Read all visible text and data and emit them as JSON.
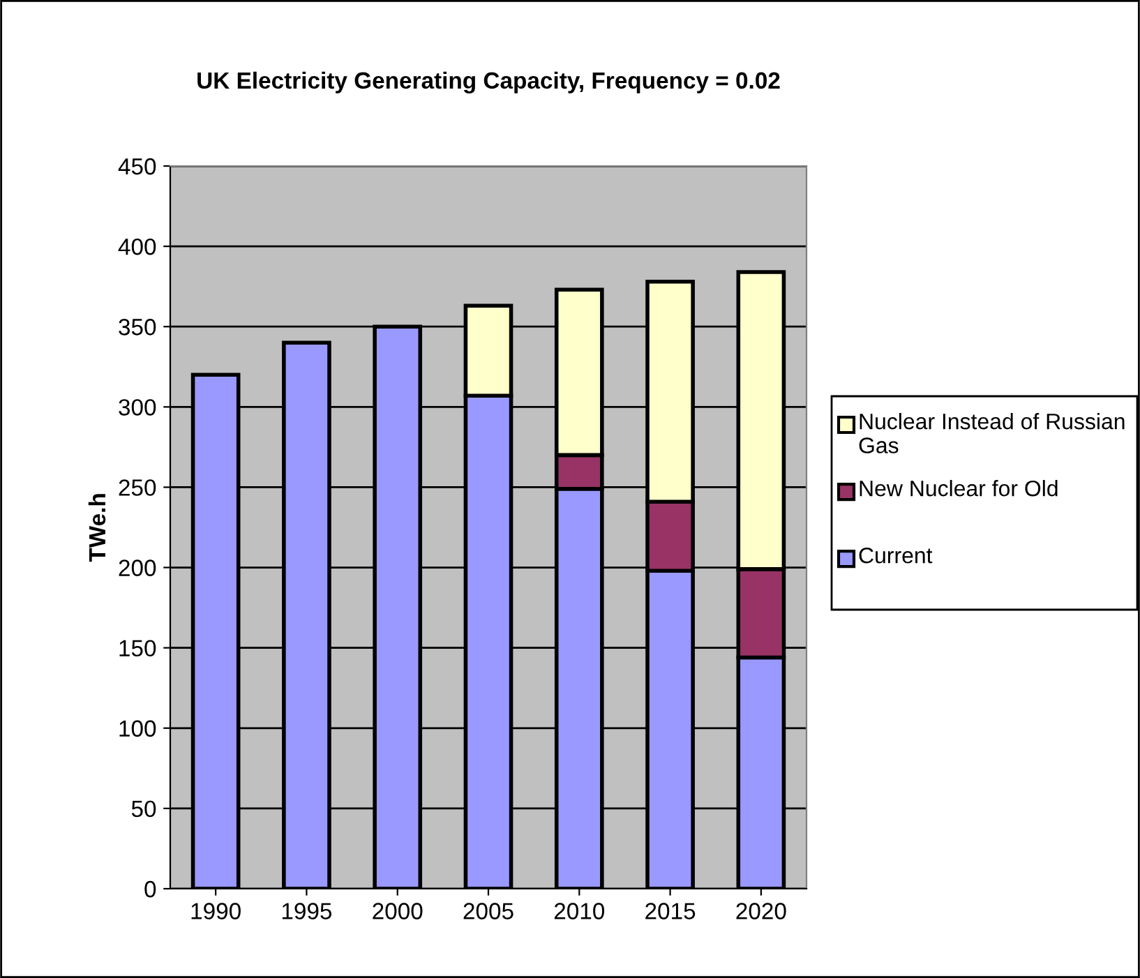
{
  "chart_data": {
    "type": "bar",
    "title": "UK Electricity Generating Capacity, Frequency = 0.02",
    "ylabel": "TWe.h",
    "categories": [
      "1990",
      "1995",
      "2000",
      "2005",
      "2010",
      "2015",
      "2020"
    ],
    "stacked": true,
    "ylim": [
      0,
      450
    ],
    "yticks": [
      0,
      50,
      100,
      150,
      200,
      250,
      300,
      350,
      400,
      450
    ],
    "grid": "y",
    "legend": "right",
    "series": [
      {
        "name": "Current",
        "color": "#9999ff",
        "values": [
          320,
          340,
          350,
          307,
          249,
          198,
          144
        ]
      },
      {
        "name": "New Nuclear for Old",
        "color": "#993366",
        "values": [
          null,
          null,
          null,
          null,
          21,
          43,
          55
        ]
      },
      {
        "name": "Nuclear Instead of Russian Gas",
        "color": "#ffffcc",
        "values": [
          null,
          null,
          null,
          56,
          103,
          137,
          185
        ]
      }
    ]
  }
}
